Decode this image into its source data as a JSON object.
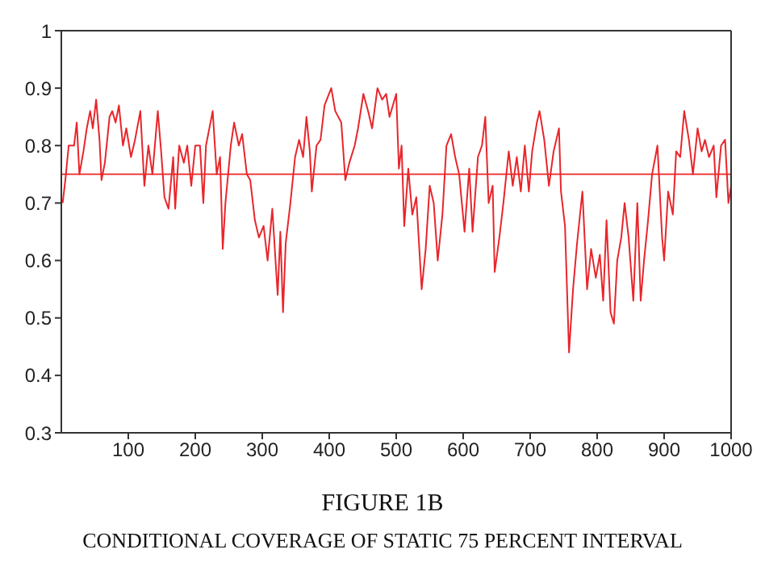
{
  "chart_data": {
    "type": "line",
    "annotations": [
      "FIGURE 1B",
      "CONDITIONAL COVERAGE OF STATIC 75 PERCENT INTERVAL"
    ],
    "xlim": [
      0,
      1000
    ],
    "xticks": [
      100,
      200,
      300,
      400,
      500,
      600,
      700,
      800,
      900,
      1000
    ],
    "ylim": [
      0.3,
      1
    ],
    "yticks": [
      0.3,
      0.4,
      0.5,
      0.6,
      0.7,
      0.8,
      0.9,
      1
    ],
    "marker": "none",
    "line_style": "solid",
    "ref_lines": [
      {
        "axis": "y",
        "value": 0.75,
        "color": "#f03c3c"
      }
    ],
    "series": [
      {
        "color": "#e8262b",
        "x": [
          2,
          6,
          11,
          19,
          23,
          27,
          33,
          38,
          43,
          47,
          52,
          57,
          60,
          65,
          72,
          76,
          81,
          86,
          92,
          97,
          104,
          110,
          118,
          124,
          130,
          136,
          144,
          149,
          154,
          160,
          167,
          170,
          176,
          183,
          188,
          194,
          200,
          207,
          212,
          216,
          226,
          232,
          237,
          241,
          245,
          253,
          258,
          265,
          270,
          277,
          282,
          289,
          295,
          302,
          308,
          315,
          323,
          327,
          331,
          335,
          342,
          349,
          355,
          361,
          366,
          371,
          374,
          381,
          387,
          393,
          403,
          409,
          418,
          424,
          430,
          438,
          443,
          451,
          458,
          464,
          472,
          479,
          485,
          490,
          500,
          504,
          508,
          512,
          518,
          524,
          530,
          538,
          544,
          550,
          556,
          562,
          569,
          575,
          582,
          588,
          594,
          602,
          609,
          614,
          622,
          628,
          633,
          638,
          644,
          647,
          654,
          660,
          668,
          674,
          680,
          686,
          692,
          698,
          703,
          710,
          714,
          721,
          728,
          735,
          743,
          746,
          752,
          758,
          764,
          770,
          778,
          785,
          791,
          798,
          804,
          809,
          814,
          820,
          825,
          830,
          836,
          841,
          847,
          854,
          860,
          865,
          870,
          876,
          882,
          890,
          897,
          900,
          906,
          913,
          918,
          924,
          930,
          937,
          943,
          950,
          956,
          961,
          967,
          974,
          978,
          985,
          991,
          996,
          1000
        ],
        "values": [
          0.7,
          0.74,
          0.8,
          0.8,
          0.84,
          0.75,
          0.79,
          0.83,
          0.86,
          0.83,
          0.88,
          0.81,
          0.74,
          0.77,
          0.85,
          0.86,
          0.84,
          0.87,
          0.8,
          0.83,
          0.78,
          0.81,
          0.86,
          0.73,
          0.8,
          0.75,
          0.86,
          0.79,
          0.71,
          0.69,
          0.78,
          0.69,
          0.8,
          0.77,
          0.8,
          0.73,
          0.8,
          0.8,
          0.7,
          0.8,
          0.86,
          0.75,
          0.78,
          0.62,
          0.7,
          0.8,
          0.84,
          0.8,
          0.82,
          0.75,
          0.74,
          0.67,
          0.64,
          0.66,
          0.6,
          0.69,
          0.54,
          0.65,
          0.51,
          0.63,
          0.7,
          0.78,
          0.81,
          0.78,
          0.85,
          0.79,
          0.72,
          0.8,
          0.81,
          0.87,
          0.9,
          0.86,
          0.84,
          0.74,
          0.77,
          0.8,
          0.83,
          0.89,
          0.86,
          0.83,
          0.9,
          0.88,
          0.89,
          0.85,
          0.89,
          0.76,
          0.8,
          0.66,
          0.76,
          0.68,
          0.71,
          0.55,
          0.62,
          0.73,
          0.7,
          0.6,
          0.68,
          0.8,
          0.82,
          0.78,
          0.75,
          0.65,
          0.76,
          0.65,
          0.78,
          0.8,
          0.85,
          0.7,
          0.73,
          0.58,
          0.64,
          0.7,
          0.79,
          0.73,
          0.78,
          0.72,
          0.8,
          0.72,
          0.79,
          0.84,
          0.86,
          0.81,
          0.73,
          0.79,
          0.83,
          0.72,
          0.66,
          0.44,
          0.55,
          0.63,
          0.72,
          0.55,
          0.62,
          0.57,
          0.61,
          0.53,
          0.67,
          0.51,
          0.49,
          0.6,
          0.64,
          0.7,
          0.64,
          0.53,
          0.7,
          0.53,
          0.6,
          0.67,
          0.75,
          0.8,
          0.64,
          0.6,
          0.72,
          0.68,
          0.79,
          0.78,
          0.86,
          0.81,
          0.75,
          0.83,
          0.79,
          0.81,
          0.78,
          0.8,
          0.71,
          0.8,
          0.81,
          0.7,
          0.73
        ]
      }
    ]
  }
}
